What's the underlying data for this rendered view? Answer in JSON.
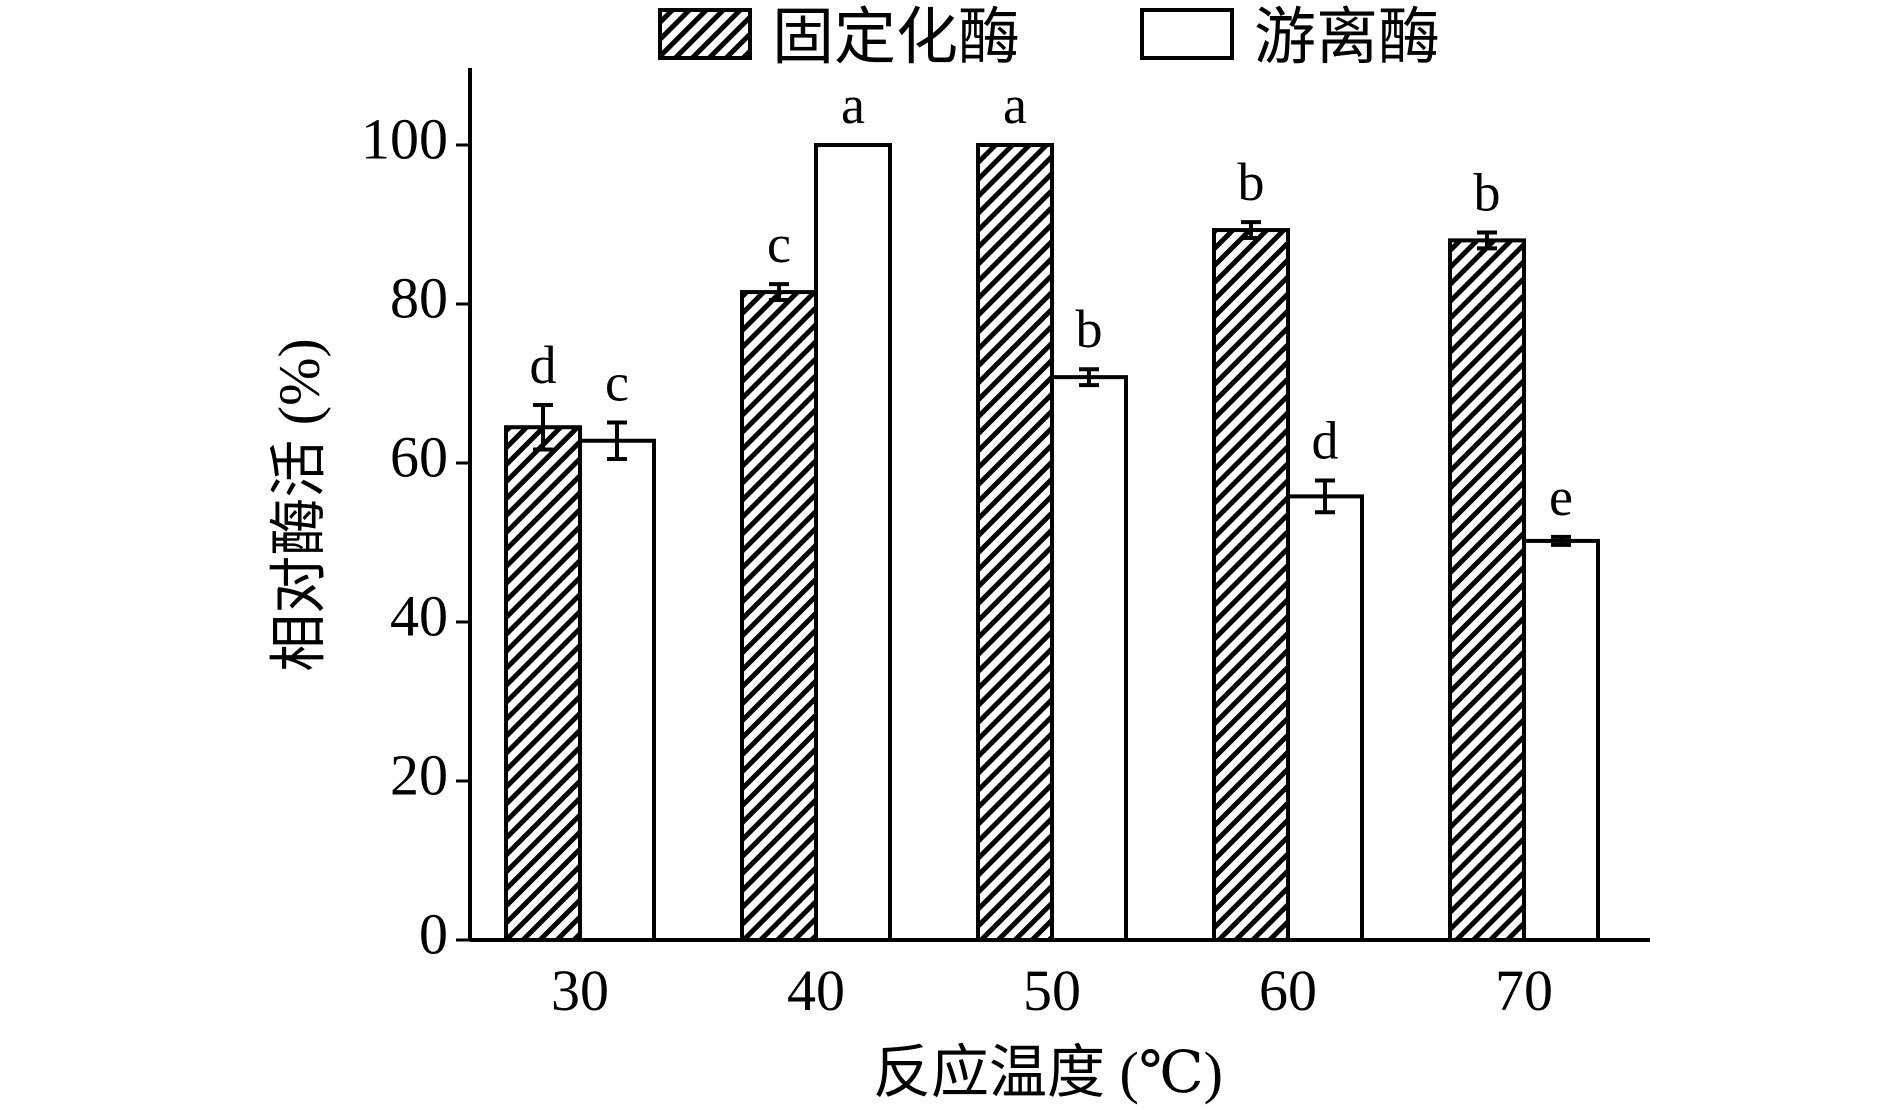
{
  "chart_data": {
    "type": "bar",
    "xlabel": "反应温度 (℃)",
    "ylabel": "相对酶活 (%)",
    "ylim": [
      0,
      110
    ],
    "yticks": [
      0,
      20,
      40,
      60,
      80,
      100
    ],
    "categories": [
      "30",
      "40",
      "50",
      "60",
      "70"
    ],
    "legend_position": "top-center",
    "series": [
      {
        "name": "固定化酶",
        "fill": "hatched",
        "color": "#000000",
        "values": [
          64.5,
          81.5,
          100,
          89.3,
          88.0
        ],
        "errors": [
          2.8,
          1.0,
          0,
          1.0,
          1.0
        ],
        "labels": [
          "d",
          "c",
          "a",
          "b",
          "b"
        ]
      },
      {
        "name": "游离酶",
        "fill": "white",
        "color": "#000000",
        "values": [
          62.8,
          100,
          70.8,
          55.8,
          50.2
        ],
        "errors": [
          2.3,
          0,
          1.0,
          2.0,
          0.5
        ],
        "labels": [
          "c",
          "a",
          "b",
          "d",
          "e"
        ]
      }
    ]
  }
}
